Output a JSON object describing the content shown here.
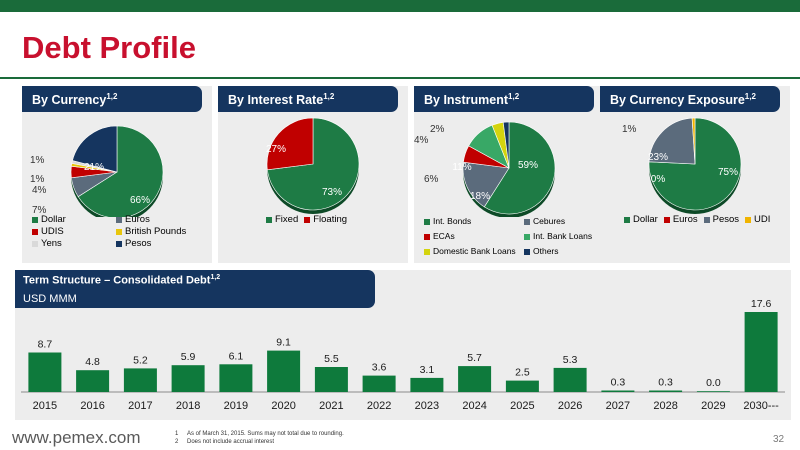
{
  "page": {
    "title": "Debt Profile",
    "footer_url": "www.pemex.com",
    "page_number": "32",
    "footnotes": [
      {
        "num": "1",
        "text": "As of March 31, 2015. Sums may not total due to rounding."
      },
      {
        "num": "2",
        "text": "Does not include accrual interest"
      }
    ]
  },
  "colors": {
    "brand_green": "#1a6b3a",
    "title_red": "#c8102e",
    "header_navy": "#15355f",
    "panel_grey": "#ededed"
  },
  "panels": [
    {
      "title": "By Currency",
      "sup": "1,2"
    },
    {
      "title": "By Interest Rate",
      "sup": "1,2"
    },
    {
      "title": "By Instrument",
      "sup": "1,2"
    },
    {
      "title": "By Currency Exposure",
      "sup": "1,2"
    }
  ],
  "term": {
    "title": "Term Structure – Consolidated Debt",
    "sup": "1,2",
    "unit": "USD MMM"
  },
  "chart_data": [
    {
      "type": "pie",
      "title": "By Currency",
      "slices": [
        {
          "name": "Dollar",
          "value": 66,
          "label": "66%",
          "color": "#1e7b45"
        },
        {
          "name": "Euros",
          "value": 7,
          "label": "7%",
          "color": "#5b6b7c"
        },
        {
          "name": "UDIS",
          "value": 4,
          "label": "4%",
          "color": "#c00000"
        },
        {
          "name": "British Pounds",
          "value": 1,
          "label": "1%",
          "color": "#e8c60c"
        },
        {
          "name": "Yens",
          "value": 1,
          "label": "1%",
          "color": "#d9d9d9"
        },
        {
          "name": "Pesos",
          "value": 21,
          "label": "21%",
          "color": "#15355f"
        }
      ]
    },
    {
      "type": "pie",
      "title": "By Interest Rate",
      "slices": [
        {
          "name": "Fixed",
          "value": 73,
          "label": "73%",
          "color": "#1e7b45"
        },
        {
          "name": "Floating",
          "value": 27,
          "label": "27%",
          "color": "#c00000"
        }
      ]
    },
    {
      "type": "pie",
      "title": "By Instrument",
      "slices": [
        {
          "name": "Int. Bonds",
          "value": 59,
          "label": "59%",
          "color": "#1e7b45"
        },
        {
          "name": "Cebures",
          "value": 18,
          "label": "18%",
          "color": "#5b6b7c"
        },
        {
          "name": "ECAs",
          "value": 6,
          "label": "6%",
          "color": "#c00000"
        },
        {
          "name": "Int. Bank Loans",
          "value": 11,
          "label": "11%",
          "color": "#38a866"
        },
        {
          "name": "Domestic Bank Loans",
          "value": 4,
          "label": "4%",
          "color": "#d4d40e"
        },
        {
          "name": "Others",
          "value": 2,
          "label": "2%",
          "color": "#15355f"
        }
      ]
    },
    {
      "type": "pie",
      "title": "By Currency Exposure",
      "slices": [
        {
          "name": "Dollar",
          "value": 75,
          "label": "75%",
          "color": "#1e7b45"
        },
        {
          "name": "Euros",
          "value": 0,
          "label": "0%",
          "color": "#c00000"
        },
        {
          "name": "Pesos",
          "value": 23,
          "label": "23%",
          "color": "#5b6b7c"
        },
        {
          "name": "UDI",
          "value": 1,
          "label": "1%",
          "color": "#f0b400"
        }
      ]
    },
    {
      "type": "bar",
      "title": "Term Structure – Consolidated Debt",
      "ylabel": "USD MMM",
      "categories": [
        "2015",
        "2016",
        "2017",
        "2018",
        "2019",
        "2020",
        "2021",
        "2022",
        "2023",
        "2024",
        "2025",
        "2026",
        "2027",
        "2028",
        "2029",
        "2030---"
      ],
      "values": [
        8.7,
        4.8,
        5.2,
        5.9,
        6.1,
        9.1,
        5.5,
        3.6,
        3.1,
        5.7,
        2.5,
        5.3,
        0.3,
        0.3,
        0.0,
        17.6
      ],
      "value_labels": [
        "8.7",
        "4.8",
        "5.2",
        "5.9",
        "6.1",
        "9.1",
        "5.5",
        "3.6",
        "3.1",
        "5.7",
        "2.5",
        "5.3",
        "0.3",
        "0.3",
        "0.0",
        "17.6"
      ],
      "color": "#0e7a3c"
    }
  ]
}
